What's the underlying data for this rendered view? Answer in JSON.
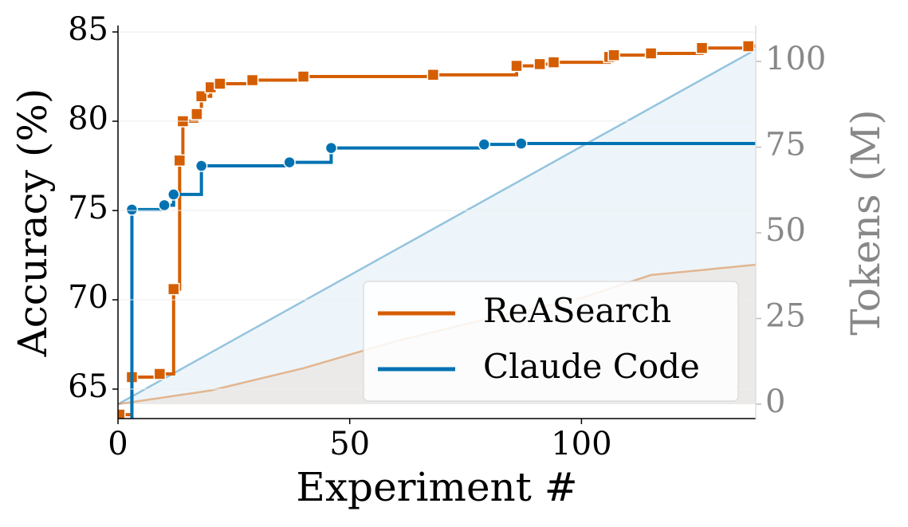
{
  "chart_data": {
    "type": "line",
    "xlabel": "Experiment #",
    "ylabel": "Accuracy (%)",
    "y2label": "Tokens (M)",
    "xlim": [
      0,
      137.6
    ],
    "ylim": [
      63.35,
      85.36
    ],
    "y2lim": [
      -4.2,
      110.5
    ],
    "xticks": [
      0,
      50,
      100
    ],
    "yticks": [
      65,
      70,
      75,
      80,
      85
    ],
    "y2ticks": [
      0,
      25,
      50,
      75,
      100
    ],
    "grid": true,
    "legend": "lower right",
    "series": [
      {
        "name": "ReASearch",
        "color": "#d55e00",
        "marker": "square",
        "step": true,
        "x": [
          0.3,
          3,
          9,
          12,
          13.3,
          14,
          17,
          18,
          20,
          22,
          29,
          40,
          68,
          86,
          91,
          94,
          106,
          107,
          115,
          126,
          136
        ],
        "values": [
          63.57,
          65.67,
          65.85,
          70.6,
          77.8,
          80.0,
          80.4,
          81.4,
          81.9,
          82.1,
          82.3,
          82.5,
          82.6,
          83.1,
          83.2,
          83.3,
          83.6,
          83.7,
          83.8,
          84.1,
          84.2
        ]
      },
      {
        "name": "Claude Code",
        "color": "#0072b2",
        "marker": "circle",
        "step": true,
        "x": [
          3,
          10,
          12,
          18,
          37,
          46,
          79,
          87
        ],
        "values": [
          75.05,
          75.3,
          75.9,
          77.5,
          77.7,
          78.5,
          78.7,
          78.75
        ]
      },
      {
        "axis": "y2",
        "color": "#0072b2",
        "fill": true,
        "x": [
          0,
          137.6
        ],
        "values": [
          0,
          103.5
        ]
      },
      {
        "axis": "y2",
        "color": "#d55e00",
        "fill": true,
        "x": [
          0,
          20,
          40,
          60,
          80,
          100,
          115,
          137.6
        ],
        "values": [
          0,
          4,
          10.5,
          18.4,
          25,
          31,
          37.7,
          40.7
        ]
      }
    ]
  }
}
